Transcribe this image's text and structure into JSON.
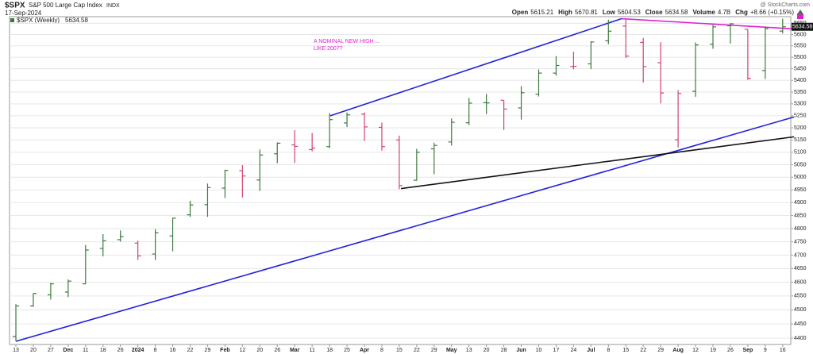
{
  "chart_data": {
    "type": "ohlc",
    "title": "$SPX",
    "subtitle": "S&P 500 Large Cap Index",
    "exchange": "INDX",
    "date": "17-Sep-2024",
    "credit": "@ StockCharts.com",
    "legend_label": "$SPX (Weekly)",
    "quote": [
      {
        "label": "Open",
        "value": 5615.21
      },
      {
        "label": "High",
        "value": 5670.81
      },
      {
        "label": "Low",
        "value": 5604.53
      },
      {
        "label": "Close",
        "value": 5634.58
      },
      {
        "label": "Volume",
        "value": "4.7B"
      },
      {
        "label": "Chg",
        "value": "+8.66 (+0.15%)"
      }
    ],
    "categories": [
      "13",
      "20",
      "27",
      "Dec",
      "11",
      "18",
      "26",
      "2024",
      "8",
      "16",
      "22",
      "29",
      "Feb",
      "12",
      "20",
      "26",
      "Mar",
      "11",
      "18",
      "25",
      "Apr",
      "8",
      "15",
      "22",
      "29",
      "May",
      "13",
      "20",
      "28",
      "Jun",
      "10",
      "17",
      "24",
      "Jul",
      "8",
      "15",
      "22",
      "29",
      "Aug",
      "12",
      "19",
      "26",
      "Sep",
      "9",
      "16"
    ],
    "open": [
      4406,
      4514,
      4554,
      4564,
      4594,
      4725,
      4758,
      4745,
      4704,
      4772,
      4853,
      4892,
      4957,
      5026,
      4989,
      5094,
      5130,
      5111,
      5123,
      5220,
      5257,
      5202,
      5150,
      4988,
      5114,
      5142,
      5221,
      5305,
      5315,
      5283,
      5341,
      5431,
      5460,
      5471,
      5572,
      5638,
      5565,
      5476,
      5151,
      5353,
      5557,
      5639,
      5623,
      5442,
      5615.21
    ],
    "high": [
      4520,
      4560,
      4598,
      4610,
      4738,
      4779,
      4793,
      4754,
      4798,
      4842,
      4907,
      4975,
      5030,
      5048,
      5111,
      5140,
      5190,
      5179,
      5262,
      5264,
      5264,
      5222,
      5168,
      5114,
      5139,
      5239,
      5325,
      5342,
      5315,
      5375,
      5447,
      5505,
      5524,
      5570,
      5666,
      5670,
      5585,
      5566,
      5358,
      5565,
      5643,
      5651,
      5623,
      5636,
      5670.81
    ],
    "low": [
      4389,
      4511,
      4537,
      4546,
      4593,
      4695,
      4751,
      4682,
      4682,
      4714,
      4845,
      4845,
      4918,
      4920,
      4946,
      5056,
      5057,
      5104,
      5117,
      5203,
      5146,
      5107,
      4953,
      4986,
      5012,
      5127,
      5211,
      5257,
      5191,
      5234,
      5331,
      5420,
      5447,
      5448,
      5557,
      5497,
      5390,
      5302,
      5119,
      5330,
      5537,
      5560,
      5402,
      5406,
      5604.53
    ],
    "close": [
      4514,
      4559,
      4594,
      4604,
      4719,
      4754,
      4770,
      4697,
      4784,
      4840,
      4891,
      4959,
      5027,
      5005,
      5089,
      5137,
      5124,
      5117,
      5234,
      5254,
      5204,
      5123,
      4967,
      5100,
      5128,
      5223,
      5303,
      5304,
      5278,
      5347,
      5431,
      5464,
      5460,
      5567,
      5615,
      5505,
      5459,
      5346,
      5344,
      5554,
      5634,
      5648,
      5408,
      5626,
      5634.58
    ],
    "up_color": "#3d7a3d",
    "down_color": "#d2436e",
    "log_scale": true,
    "grid": true,
    "ylim": [
      4378,
      5680
    ],
    "yticks": [
      4400,
      4450,
      4500,
      4550,
      4600,
      4650,
      4700,
      4750,
      4800,
      4850,
      4900,
      4950,
      5000,
      5050,
      5100,
      5150,
      5200,
      5250,
      5300,
      5350,
      5400,
      5450,
      5500,
      5550,
      5600,
      5650
    ],
    "trendlines": [
      {
        "color": "#2222dd",
        "points": [
          [
            0,
            4389
          ],
          [
            44.65,
            5245
          ]
        ]
      },
      {
        "color": "#2222dd",
        "points": [
          [
            18.04,
            5250
          ],
          [
            34.76,
            5671
          ]
        ]
      },
      {
        "color": "#e020d0",
        "points": [
          [
            34.76,
            5671
          ],
          [
            44.65,
            5625
          ]
        ]
      },
      {
        "color": "#111111",
        "points": [
          [
            22.1,
            4955
          ],
          [
            44.65,
            5163
          ]
        ]
      }
    ],
    "annotation": {
      "color": "#e020d0",
      "lines": [
        "A NOMINAL NEW HIGH ...",
        "LIKE 2007?"
      ]
    }
  }
}
